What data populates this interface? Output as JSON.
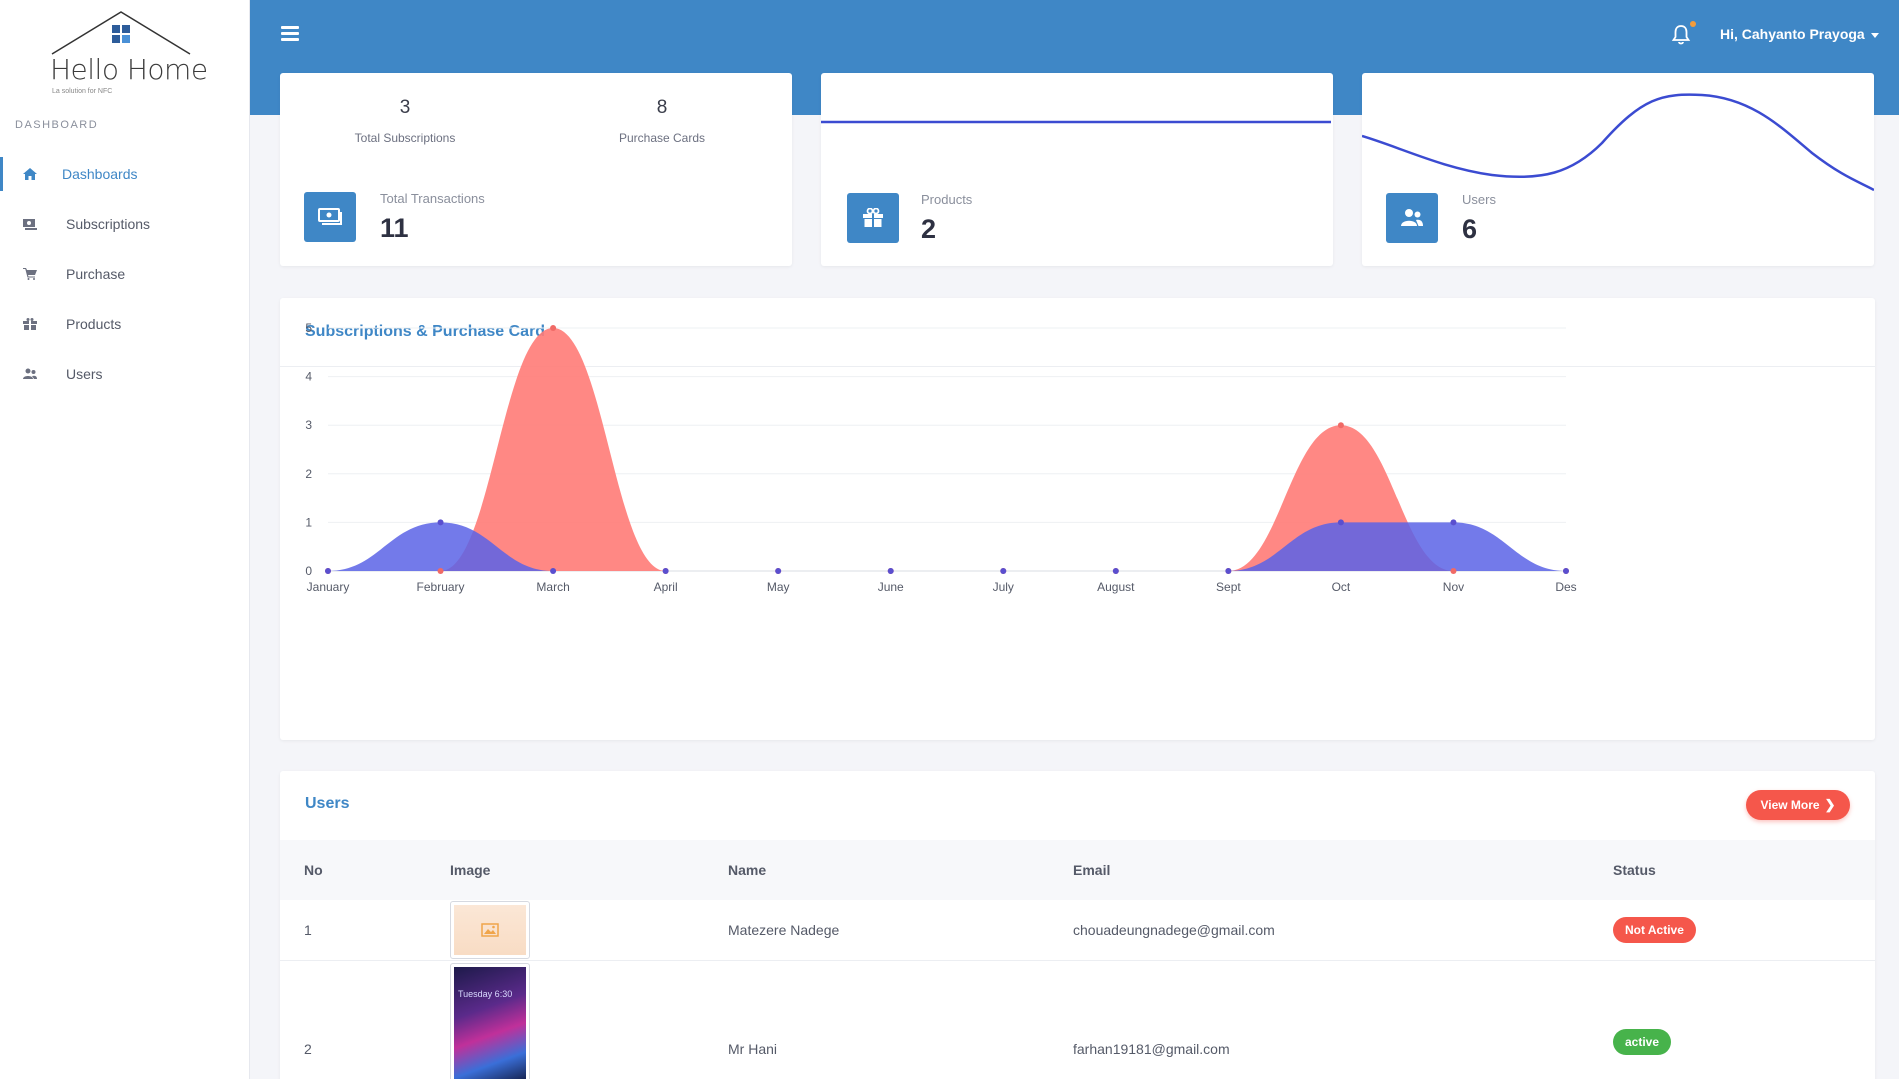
{
  "brand": {
    "name": "Hello Home",
    "tagline": "La solution for NFC"
  },
  "sidebar": {
    "section": "DASHBOARD",
    "items": [
      {
        "label": "Dashboards",
        "icon": "home-icon",
        "active": true
      },
      {
        "label": "Subscriptions",
        "icon": "money-icon"
      },
      {
        "label": "Purchase",
        "icon": "cart-icon"
      },
      {
        "label": "Products",
        "icon": "gift-icon"
      },
      {
        "label": "Users",
        "icon": "users-icon"
      }
    ]
  },
  "header": {
    "user_greeting": "Hi, Cahyanto Prayoga",
    "notification_icon": "bell-icon",
    "accent": "#3f87c6"
  },
  "cards": {
    "transactions": {
      "subscriptions_value": "3",
      "subscriptions_label": "Total Subscriptions",
      "purchase_value": "8",
      "purchase_label": "Purchase Cards",
      "label": "Total Transactions",
      "value": "11"
    },
    "products": {
      "label": "Products",
      "value": "2"
    },
    "users": {
      "label": "Users",
      "value": "6"
    }
  },
  "chart_panel": {
    "title": "Subscriptions & Purchase Card"
  },
  "chart_data": {
    "type": "area",
    "categories": [
      "January",
      "February",
      "March",
      "April",
      "May",
      "June",
      "July",
      "August",
      "Sept",
      "Oct",
      "Nov",
      "Des"
    ],
    "series": [
      {
        "values": [
          0,
          0,
          5,
          0,
          0,
          0,
          0,
          0,
          0,
          3,
          0,
          0
        ],
        "color": "#ff7b77"
      },
      {
        "values": [
          0,
          1,
          0,
          0,
          0,
          0,
          0,
          0,
          0,
          1,
          1,
          0
        ],
        "color": "#5a63e6"
      }
    ],
    "y_ticks": [
      "0",
      "1",
      "2",
      "3",
      "4",
      "5"
    ],
    "ylim": [
      0,
      5
    ],
    "grid": true
  },
  "users_panel": {
    "title": "Users",
    "view_more": "View More",
    "columns": [
      "No",
      "Image",
      "Name",
      "Email",
      "Status"
    ],
    "rows": [
      {
        "no": "1",
        "name": "Matezere Nadege",
        "email": "chouadeungnadege@gmail.com",
        "status": "Not Active"
      },
      {
        "no": "2",
        "name": "Mr Hani",
        "email": "farhan19181@gmail.com",
        "status": "active",
        "thumb_text": "Tuesday 6:30"
      }
    ]
  }
}
